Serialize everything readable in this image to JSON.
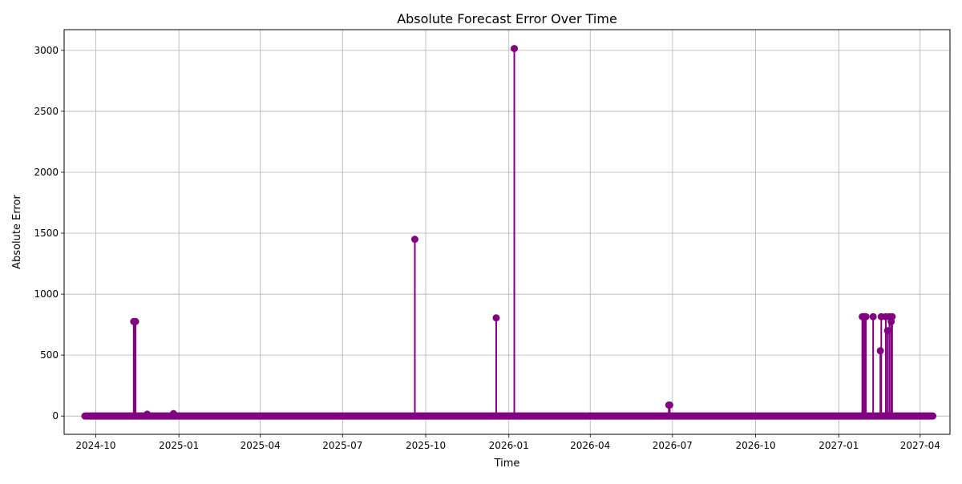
{
  "chart_data": {
    "type": "line",
    "title": "Absolute Forecast Error Over Time",
    "xlabel": "Time",
    "ylabel": "Absolute Error",
    "x_axis_type": "date",
    "xlim": [
      "2024-08-27",
      "2027-05-04"
    ],
    "ylim": [
      -150,
      3170
    ],
    "grid": true,
    "series_color": "#800080",
    "baseline_start": "2024-09-19",
    "baseline_end": "2027-04-15",
    "x_ticks": [
      {
        "date": "2024-10-01",
        "label": "2024-10"
      },
      {
        "date": "2025-01-01",
        "label": "2025-01"
      },
      {
        "date": "2025-04-01",
        "label": "2025-04"
      },
      {
        "date": "2025-07-01",
        "label": "2025-07"
      },
      {
        "date": "2025-10-01",
        "label": "2025-10"
      },
      {
        "date": "2026-01-01",
        "label": "2026-01"
      },
      {
        "date": "2026-04-01",
        "label": "2026-04"
      },
      {
        "date": "2026-07-01",
        "label": "2026-07"
      },
      {
        "date": "2026-10-01",
        "label": "2026-10"
      },
      {
        "date": "2027-01-01",
        "label": "2027-01"
      },
      {
        "date": "2027-04-01",
        "label": "2027-04"
      }
    ],
    "y_ticks": [
      {
        "value": 0,
        "label": "0"
      },
      {
        "value": 500,
        "label": "500"
      },
      {
        "value": 1000,
        "label": "1000"
      },
      {
        "value": 1500,
        "label": "1500"
      },
      {
        "value": 2000,
        "label": "2000"
      },
      {
        "value": 2500,
        "label": "2500"
      },
      {
        "value": 3000,
        "label": "3000"
      }
    ],
    "points": [
      {
        "x": "2024-11-12",
        "y": 775
      },
      {
        "x": "2024-11-13",
        "y": 775
      },
      {
        "x": "2024-11-14",
        "y": 775
      },
      {
        "x": "2024-11-27",
        "y": 15
      },
      {
        "x": "2024-12-26",
        "y": 20
      },
      {
        "x": "2025-09-19",
        "y": 1450
      },
      {
        "x": "2025-12-18",
        "y": 805
      },
      {
        "x": "2026-01-07",
        "y": 3015
      },
      {
        "x": "2026-06-27",
        "y": 90
      },
      {
        "x": "2026-06-28",
        "y": 90
      },
      {
        "x": "2027-01-27",
        "y": 815
      },
      {
        "x": "2027-01-28",
        "y": 815
      },
      {
        "x": "2027-01-29",
        "y": 815
      },
      {
        "x": "2027-01-30",
        "y": 815
      },
      {
        "x": "2027-01-31",
        "y": 815
      },
      {
        "x": "2027-02-08",
        "y": 815
      },
      {
        "x": "2027-02-16",
        "y": 535
      },
      {
        "x": "2027-02-17",
        "y": 815
      },
      {
        "x": "2027-02-22",
        "y": 815
      },
      {
        "x": "2027-02-24",
        "y": 700
      },
      {
        "x": "2027-02-26",
        "y": 815
      },
      {
        "x": "2027-02-28",
        "y": 775
      },
      {
        "x": "2027-03-01",
        "y": 815
      }
    ]
  }
}
